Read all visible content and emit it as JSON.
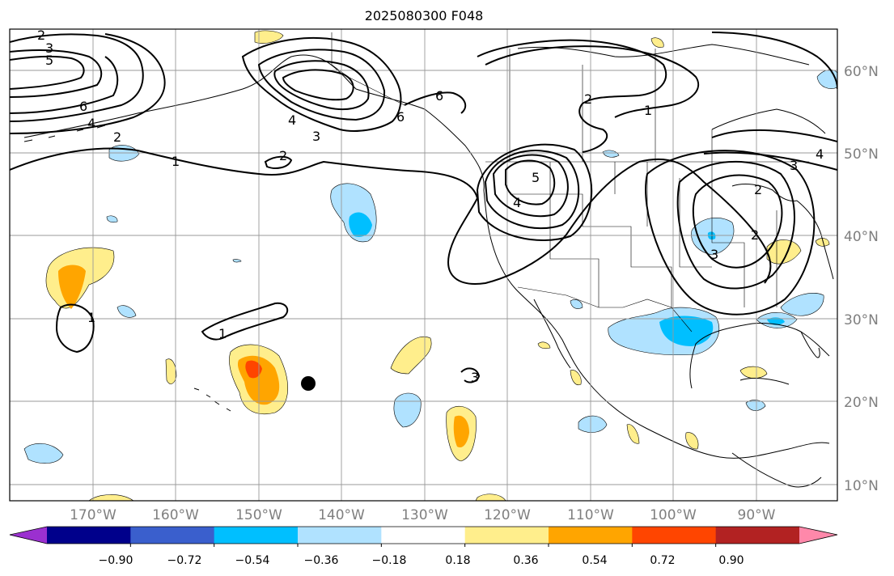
{
  "title": "2025080300 F048",
  "map": {
    "lat_labels": [
      "60°N",
      "50°N",
      "40°N",
      "30°N",
      "20°N",
      "10°N"
    ],
    "lon_labels": [
      "170°W",
      "160°W",
      "150°W",
      "140°W",
      "130°W",
      "120°W",
      "110°W",
      "100°W",
      "90°W"
    ],
    "contour_labels": [
      "2",
      "3",
      "5",
      "6",
      "4",
      "2",
      "1",
      "2",
      "6",
      "4",
      "3",
      "2",
      "1",
      "6",
      "5",
      "4",
      "2",
      "3",
      "4",
      "3",
      "2",
      "3",
      "1",
      "1"
    ],
    "marker": "filled-circle"
  },
  "colorbar": {
    "tick_labels": [
      "−0.90",
      "−0.72",
      "−0.54",
      "−0.36",
      "−0.18",
      "0.18",
      "0.36",
      "0.54",
      "0.72",
      "0.90"
    ],
    "colors": [
      "#9b30d0",
      "#00008b",
      "#3a5fcd",
      "#00bfff",
      "#b0e2ff",
      "#ffffff",
      "#ffee8c",
      "#ffa500",
      "#ff4500",
      "#b22222",
      "#ff88aa"
    ]
  }
}
